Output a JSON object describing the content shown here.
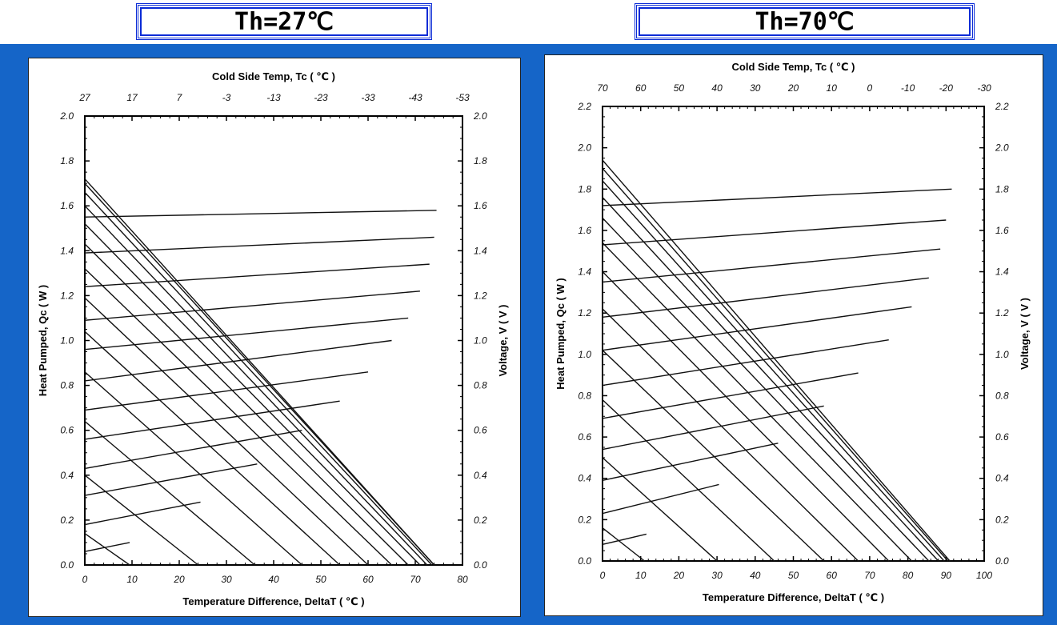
{
  "titles": {
    "left": "Th=27℃",
    "right": "Th=70℃"
  },
  "colors": {
    "background_band": "#1565c8",
    "title_border": "#0a2bd6",
    "line": "#111111"
  },
  "chart_data": [
    {
      "type": "line",
      "title": "Th=27℃",
      "xlabel": "Temperature Difference, DeltaT ( ℃ )",
      "ylabel": "Heat Pumped, Qc ( W )",
      "y2label": "Voltage, V ( V )",
      "top_label": "Cold Side Temp, Tc ( ℃ )",
      "xlim": [
        0,
        80
      ],
      "ylim": [
        0,
        2.0
      ],
      "y2lim": [
        0,
        2.0
      ],
      "x_ticks": [
        "0",
        "10",
        "20",
        "30",
        "40",
        "50",
        "60",
        "70",
        "80"
      ],
      "y_ticks": [
        "0.0",
        "0.2",
        "0.4",
        "0.6",
        "0.8",
        "1.0",
        "1.2",
        "1.4",
        "1.6",
        "1.8",
        "2.0"
      ],
      "y2_ticks": [
        "0.0",
        "0.2",
        "0.4",
        "0.6",
        "0.8",
        "1.0",
        "1.2",
        "1.4",
        "1.6",
        "1.8",
        "2.0"
      ],
      "top_ticks": [
        "27",
        "17",
        "7",
        "-3",
        "-13",
        "-23",
        "-33",
        "-43",
        "-53"
      ],
      "heat_lines": [
        {
          "x": [
            0,
            9.5
          ],
          "y": [
            0.14,
            0
          ]
        },
        {
          "x": [
            0,
            24
          ],
          "y": [
            0.4,
            0
          ]
        },
        {
          "x": [
            0,
            36
          ],
          "y": [
            0.64,
            0
          ]
        },
        {
          "x": [
            0,
            46
          ],
          "y": [
            0.86,
            0
          ]
        },
        {
          "x": [
            0,
            54
          ],
          "y": [
            1.04,
            0
          ]
        },
        {
          "x": [
            0,
            60
          ],
          "y": [
            1.19,
            0
          ]
        },
        {
          "x": [
            0,
            65
          ],
          "y": [
            1.32,
            0
          ]
        },
        {
          "x": [
            0,
            68.5
          ],
          "y": [
            1.43,
            0
          ]
        },
        {
          "x": [
            0,
            71
          ],
          "y": [
            1.52,
            0
          ]
        },
        {
          "x": [
            0,
            72.5
          ],
          "y": [
            1.6,
            0
          ]
        },
        {
          "x": [
            0,
            73.5
          ],
          "y": [
            1.66,
            0
          ]
        },
        {
          "x": [
            0,
            74
          ],
          "y": [
            1.7,
            0
          ]
        },
        {
          "x": [
            0,
            74
          ],
          "y": [
            1.72,
            0
          ]
        }
      ],
      "voltage_lines": [
        {
          "x": [
            0,
            9.5
          ],
          "y": [
            0.06,
            0.1
          ]
        },
        {
          "x": [
            0,
            24.5
          ],
          "y": [
            0.18,
            0.28
          ]
        },
        {
          "x": [
            0,
            36.5
          ],
          "y": [
            0.31,
            0.45
          ]
        },
        {
          "x": [
            0,
            46
          ],
          "y": [
            0.43,
            0.6
          ]
        },
        {
          "x": [
            0,
            54
          ],
          "y": [
            0.56,
            0.73
          ]
        },
        {
          "x": [
            0,
            60
          ],
          "y": [
            0.69,
            0.86
          ]
        },
        {
          "x": [
            0,
            65
          ],
          "y": [
            0.82,
            1.0
          ]
        },
        {
          "x": [
            0,
            68.5
          ],
          "y": [
            0.96,
            1.1
          ]
        },
        {
          "x": [
            0,
            71
          ],
          "y": [
            1.09,
            1.22
          ]
        },
        {
          "x": [
            0,
            73
          ],
          "y": [
            1.24,
            1.34
          ]
        },
        {
          "x": [
            0,
            74
          ],
          "y": [
            1.39,
            1.46
          ]
        },
        {
          "x": [
            0,
            74.5
          ],
          "y": [
            1.55,
            1.58
          ]
        }
      ]
    },
    {
      "type": "line",
      "title": "Th=70℃",
      "xlabel": "Temperature Difference, DeltaT ( ℃ )",
      "ylabel": "Heat Pumped, Qc ( W )",
      "y2label": "Voltage, V ( V )",
      "top_label": "Cold Side Temp, Tc ( ℃ )",
      "xlim": [
        0,
        100
      ],
      "ylim": [
        0,
        2.2
      ],
      "y2lim": [
        0,
        2.2
      ],
      "x_ticks": [
        "0",
        "10",
        "20",
        "30",
        "40",
        "50",
        "60",
        "70",
        "80",
        "90",
        "100"
      ],
      "y_ticks": [
        "0.0",
        "0.2",
        "0.4",
        "0.6",
        "0.8",
        "1.0",
        "1.2",
        "1.4",
        "1.6",
        "1.8",
        "2.0",
        "2.2"
      ],
      "y2_ticks": [
        "0.0",
        "0.2",
        "0.4",
        "0.6",
        "0.8",
        "1.0",
        "1.2",
        "1.4",
        "1.6",
        "1.8",
        "2.0",
        "2.2"
      ],
      "top_ticks": [
        "70",
        "60",
        "50",
        "40",
        "30",
        "20",
        "10",
        "0",
        "-10",
        "-20",
        "-30"
      ],
      "heat_lines": [
        {
          "x": [
            0,
            11
          ],
          "y": [
            0.16,
            0
          ]
        },
        {
          "x": [
            0,
            30
          ],
          "y": [
            0.5,
            0
          ]
        },
        {
          "x": [
            0,
            45
          ],
          "y": [
            0.78,
            0
          ]
        },
        {
          "x": [
            0,
            58
          ],
          "y": [
            1.02,
            0
          ]
        },
        {
          "x": [
            0,
            67
          ],
          "y": [
            1.22,
            0
          ]
        },
        {
          "x": [
            0,
            75
          ],
          "y": [
            1.4,
            0
          ]
        },
        {
          "x": [
            0,
            81
          ],
          "y": [
            1.54,
            0
          ]
        },
        {
          "x": [
            0,
            85.5
          ],
          "y": [
            1.66,
            0
          ]
        },
        {
          "x": [
            0,
            88
          ],
          "y": [
            1.76,
            0
          ]
        },
        {
          "x": [
            0,
            89.5
          ],
          "y": [
            1.84,
            0
          ]
        },
        {
          "x": [
            0,
            90.5
          ],
          "y": [
            1.9,
            0
          ]
        },
        {
          "x": [
            0,
            91
          ],
          "y": [
            1.94,
            0
          ]
        }
      ],
      "voltage_lines": [
        {
          "x": [
            0,
            11.5
          ],
          "y": [
            0.08,
            0.13
          ]
        },
        {
          "x": [
            0,
            30.5
          ],
          "y": [
            0.23,
            0.37
          ]
        },
        {
          "x": [
            0,
            46
          ],
          "y": [
            0.39,
            0.57
          ]
        },
        {
          "x": [
            0,
            58
          ],
          "y": [
            0.54,
            0.75
          ]
        },
        {
          "x": [
            0,
            67
          ],
          "y": [
            0.69,
            0.91
          ]
        },
        {
          "x": [
            0,
            75
          ],
          "y": [
            0.85,
            1.07
          ]
        },
        {
          "x": [
            0,
            81
          ],
          "y": [
            1.02,
            1.23
          ]
        },
        {
          "x": [
            0,
            85.5
          ],
          "y": [
            1.18,
            1.37
          ]
        },
        {
          "x": [
            0,
            88.5
          ],
          "y": [
            1.35,
            1.51
          ]
        },
        {
          "x": [
            0,
            90
          ],
          "y": [
            1.53,
            1.65
          ]
        },
        {
          "x": [
            0,
            91.5
          ],
          "y": [
            1.72,
            1.8
          ]
        }
      ]
    }
  ]
}
